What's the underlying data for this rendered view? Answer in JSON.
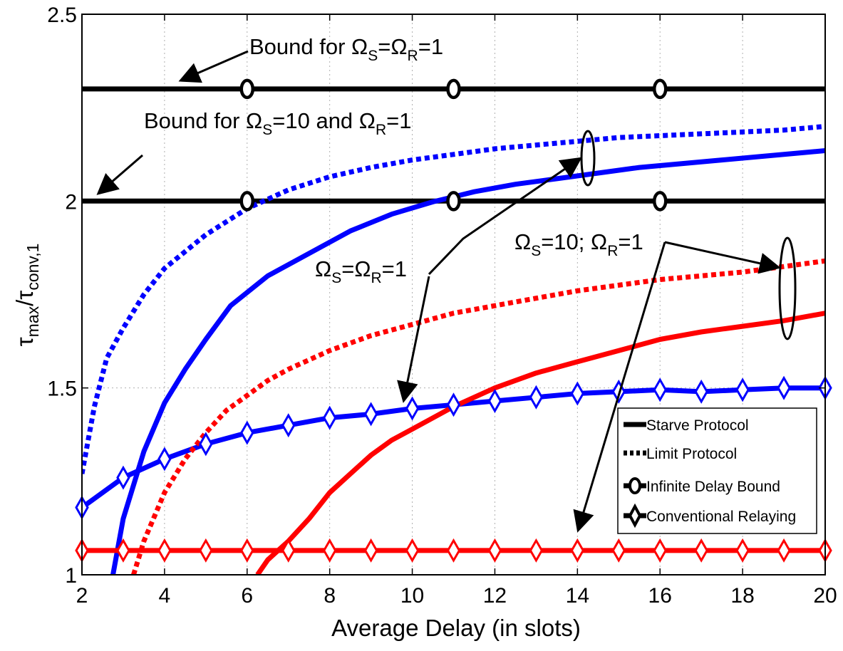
{
  "chart_data": {
    "type": "line",
    "xlabel": "Average Delay (in slots)",
    "ylabel": {
      "base": "τ",
      "sub1": "max",
      "slash": "/τ",
      "sub2": "conv,1"
    },
    "xlim": [
      2,
      20
    ],
    "ylim": [
      1,
      2.5
    ],
    "x_ticks": [
      2,
      4,
      6,
      8,
      10,
      12,
      14,
      16,
      18,
      20
    ],
    "y_ticks": [
      1,
      1.5,
      2,
      2.5
    ],
    "y_tick_labels": [
      "1",
      "1.5",
      "2",
      "2.5"
    ],
    "grid": true,
    "legend_position": "bottom-right",
    "legend": [
      {
        "label": "Starve Protocol",
        "style": "solid"
      },
      {
        "label": "Limit Protocol",
        "style": "dotted"
      },
      {
        "label": "Infinite Delay Bound",
        "style": "circle"
      },
      {
        "label": "Conventional Relaying",
        "style": "diamond"
      }
    ],
    "series": [
      {
        "key": "bound_1_1",
        "color": "#000000",
        "style": "solid",
        "marker": "circle",
        "x": [
          2,
          20
        ],
        "y": [
          2.3,
          2.3
        ],
        "marker_x": [
          6,
          11,
          16
        ],
        "marker_y": [
          2.3,
          2.3,
          2.3
        ]
      },
      {
        "key": "bound_10_1",
        "color": "#000000",
        "style": "solid",
        "marker": "circle",
        "x": [
          2,
          20
        ],
        "y": [
          2.0,
          2.0
        ],
        "marker_x": [
          6,
          11,
          16
        ],
        "marker_y": [
          2.0,
          2.0,
          2.0
        ]
      },
      {
        "key": "limit_1_1",
        "color": "#0000ff",
        "style": "dotted",
        "x": [
          2,
          2.3,
          2.6,
          3,
          3.5,
          4,
          5,
          6,
          7,
          8,
          9,
          10,
          11,
          12,
          13,
          14,
          15,
          16,
          17,
          18,
          19,
          20
        ],
        "y": [
          1.27,
          1.45,
          1.58,
          1.66,
          1.75,
          1.82,
          1.91,
          1.98,
          2.03,
          2.065,
          2.09,
          2.11,
          2.125,
          2.14,
          2.15,
          2.16,
          2.17,
          2.175,
          2.18,
          2.185,
          2.19,
          2.2
        ]
      },
      {
        "key": "starve_1_1",
        "color": "#0000ff",
        "style": "solid",
        "x": [
          2.75,
          3,
          3.5,
          4,
          4.5,
          5,
          5.6,
          6.5,
          7.5,
          8.5,
          9.5,
          10.5,
          11.5,
          12.5,
          13.5,
          14.5,
          15.5,
          16.5,
          17.5,
          18.5,
          19.5,
          20
        ],
        "y": [
          1.0,
          1.15,
          1.33,
          1.46,
          1.55,
          1.63,
          1.72,
          1.8,
          1.86,
          1.92,
          1.965,
          1.998,
          2.025,
          2.045,
          2.06,
          2.075,
          2.09,
          2.1,
          2.11,
          2.12,
          2.13,
          2.135
        ]
      },
      {
        "key": "conv_1_1",
        "color": "#0000ff",
        "style": "solid",
        "marker": "diamond",
        "x": [
          2,
          3,
          4,
          5,
          6,
          7,
          8,
          9,
          10,
          11,
          12,
          13,
          14,
          15,
          16,
          17,
          18,
          19,
          20
        ],
        "y": [
          1.18,
          1.26,
          1.31,
          1.35,
          1.38,
          1.4,
          1.42,
          1.43,
          1.445,
          1.455,
          1.465,
          1.475,
          1.485,
          1.49,
          1.495,
          1.49,
          1.495,
          1.5,
          1.5
        ]
      },
      {
        "key": "limit_10_1",
        "color": "#ff0000",
        "style": "dotted",
        "x": [
          3.25,
          3.5,
          4,
          4.5,
          5,
          5.5,
          6,
          6.5,
          7,
          8,
          9,
          10,
          11,
          12,
          13,
          14,
          15,
          16,
          17,
          18,
          19,
          20
        ],
        "y": [
          1.0,
          1.09,
          1.22,
          1.31,
          1.38,
          1.44,
          1.48,
          1.52,
          1.55,
          1.6,
          1.64,
          1.67,
          1.7,
          1.72,
          1.74,
          1.76,
          1.775,
          1.79,
          1.8,
          1.81,
          1.825,
          1.84
        ]
      },
      {
        "key": "starve_10_1",
        "color": "#ff0000",
        "style": "solid",
        "x": [
          6.25,
          6.5,
          7,
          7.5,
          8,
          8.5,
          9,
          9.5,
          10,
          11,
          12,
          13,
          14,
          15,
          16,
          17,
          18,
          19,
          20
        ],
        "y": [
          1.0,
          1.04,
          1.09,
          1.15,
          1.22,
          1.27,
          1.32,
          1.36,
          1.39,
          1.45,
          1.5,
          1.54,
          1.57,
          1.6,
          1.63,
          1.65,
          1.665,
          1.68,
          1.7
        ]
      },
      {
        "key": "conv_10_1",
        "color": "#ff0000",
        "style": "solid",
        "marker": "diamond",
        "x": [
          2,
          3,
          4,
          5,
          6,
          7,
          8,
          9,
          10,
          11,
          12,
          13,
          14,
          15,
          16,
          17,
          18,
          19,
          20
        ],
        "y": [
          1.065,
          1.065,
          1.065,
          1.065,
          1.065,
          1.065,
          1.065,
          1.065,
          1.065,
          1.065,
          1.065,
          1.065,
          1.065,
          1.065,
          1.065,
          1.065,
          1.065,
          1.065,
          1.065
        ]
      }
    ],
    "annotations": {
      "bound_1_1": {
        "prefix": "Bound for ",
        "om1": "Ω",
        "sub1": "S",
        "eq1": "=",
        "om2": "Ω",
        "sub2": "R",
        "tail": "=1"
      },
      "bound_10_1": {
        "prefix": "Bound for ",
        "om1": "Ω",
        "sub1": "S",
        "eq1": "=10 and ",
        "om2": "Ω",
        "sub2": "R",
        "tail": "=1"
      },
      "group_1_1": {
        "om1": "Ω",
        "sub1": "S",
        "eq1": "=",
        "om2": "Ω",
        "sub2": "R",
        "tail": "=1"
      },
      "group_10_1": {
        "om1": "Ω",
        "sub1": "S",
        "eq1": "=10; ",
        "om2": "Ω",
        "sub2": "R",
        "tail": "=1"
      }
    }
  }
}
